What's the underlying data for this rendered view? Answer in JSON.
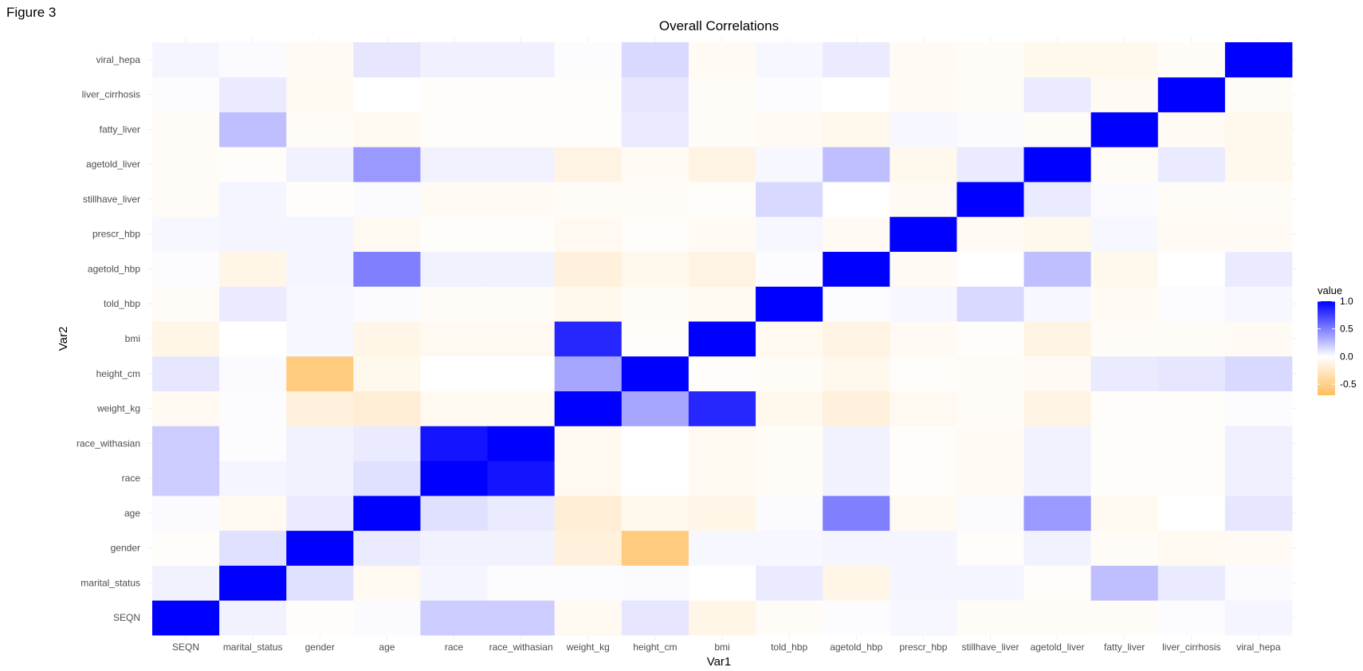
{
  "figure_label": "Figure 3",
  "colors": {
    "low": "#FFBE5C",
    "mid": "#FFFFFF",
    "high": "#0000FF"
  },
  "chart_data": {
    "type": "heatmap",
    "title": "Overall Correlations",
    "xlabel": "Var1",
    "ylabel": "Var2",
    "variables": [
      "SEQN",
      "marital_status",
      "gender",
      "age",
      "race",
      "race_withasian",
      "weight_kg",
      "height_cm",
      "bmi",
      "told_hbp",
      "agetold_hbp",
      "prescr_hbp",
      "stillhave_liver",
      "agetold_liver",
      "fatty_liver",
      "liver_cirrhosis",
      "viral_hepa"
    ],
    "legend": {
      "title": "value",
      "ticks": [
        1.0,
        0.5,
        0.0,
        -0.5
      ],
      "tick_labels": [
        "1.0",
        "0.5",
        "0.0",
        "-0.5"
      ],
      "range": [
        -0.7,
        1.0
      ]
    },
    "matrix": [
      [
        1.0,
        0.05,
        -0.02,
        0.02,
        0.2,
        0.2,
        -0.06,
        0.1,
        -0.1,
        -0.03,
        0.01,
        0.03,
        -0.04,
        -0.04,
        -0.03,
        0.01,
        0.04
      ],
      [
        0.05,
        1.0,
        0.12,
        -0.06,
        0.04,
        0.01,
        0.01,
        0.02,
        0.0,
        0.08,
        -0.1,
        0.04,
        0.04,
        -0.02,
        0.25,
        0.08,
        0.02
      ],
      [
        -0.02,
        0.12,
        1.0,
        0.08,
        0.05,
        0.05,
        -0.15,
        -0.55,
        0.03,
        0.03,
        0.04,
        0.04,
        -0.02,
        0.05,
        -0.04,
        -0.06,
        -0.05
      ],
      [
        0.02,
        -0.06,
        0.08,
        1.0,
        0.12,
        0.08,
        -0.18,
        -0.08,
        -0.1,
        0.02,
        0.5,
        -0.06,
        0.02,
        0.4,
        -0.07,
        0.0,
        0.1
      ],
      [
        0.2,
        0.04,
        0.05,
        0.12,
        1.0,
        0.92,
        -0.07,
        0.0,
        -0.06,
        -0.03,
        0.05,
        -0.02,
        -0.05,
        0.05,
        -0.02,
        -0.02,
        0.06
      ],
      [
        0.2,
        0.01,
        0.05,
        0.08,
        0.92,
        1.0,
        -0.07,
        0.0,
        -0.06,
        -0.03,
        0.05,
        -0.02,
        -0.05,
        0.05,
        -0.02,
        -0.02,
        0.06
      ],
      [
        -0.06,
        0.01,
        -0.15,
        -0.18,
        -0.07,
        -0.07,
        1.0,
        0.35,
        0.85,
        -0.08,
        -0.15,
        -0.06,
        -0.03,
        -0.12,
        -0.02,
        -0.02,
        0.01
      ],
      [
        0.1,
        0.02,
        -0.55,
        -0.08,
        0.0,
        0.0,
        0.35,
        1.0,
        -0.02,
        -0.04,
        -0.08,
        -0.02,
        -0.03,
        -0.05,
        0.08,
        0.1,
        0.15
      ],
      [
        -0.1,
        0.0,
        0.03,
        -0.1,
        -0.06,
        -0.06,
        0.85,
        -0.02,
        1.0,
        -0.07,
        -0.12,
        -0.05,
        -0.02,
        -0.12,
        -0.04,
        -0.04,
        -0.05
      ],
      [
        -0.03,
        0.08,
        0.03,
        0.02,
        -0.03,
        -0.03,
        -0.08,
        -0.04,
        -0.07,
        1.0,
        0.01,
        0.03,
        0.15,
        0.03,
        -0.05,
        0.01,
        0.03
      ],
      [
        0.01,
        -0.1,
        0.04,
        0.5,
        0.05,
        0.05,
        -0.15,
        -0.08,
        -0.12,
        0.01,
        1.0,
        -0.05,
        0.0,
        0.25,
        -0.08,
        0.0,
        0.08
      ],
      [
        0.03,
        0.04,
        0.04,
        -0.06,
        -0.02,
        -0.02,
        -0.06,
        -0.02,
        -0.05,
        0.03,
        -0.05,
        1.0,
        -0.05,
        -0.08,
        0.03,
        -0.05,
        -0.05
      ],
      [
        -0.04,
        0.04,
        -0.02,
        0.02,
        -0.05,
        -0.05,
        -0.03,
        -0.03,
        -0.02,
        0.15,
        0.0,
        -0.05,
        1.0,
        0.08,
        0.02,
        -0.04,
        -0.03
      ],
      [
        -0.04,
        -0.02,
        0.05,
        0.4,
        0.05,
        0.05,
        -0.12,
        -0.05,
        -0.12,
        0.03,
        0.25,
        -0.08,
        0.08,
        1.0,
        -0.03,
        0.08,
        -0.08
      ],
      [
        -0.03,
        0.25,
        -0.04,
        -0.07,
        -0.02,
        -0.02,
        -0.02,
        0.08,
        -0.04,
        -0.05,
        -0.08,
        0.03,
        0.02,
        -0.03,
        1.0,
        -0.05,
        -0.08
      ],
      [
        0.01,
        0.08,
        -0.06,
        0.0,
        -0.02,
        -0.02,
        -0.02,
        0.1,
        -0.04,
        0.01,
        0.0,
        -0.05,
        -0.04,
        0.08,
        -0.05,
        1.0,
        -0.03
      ],
      [
        0.04,
        0.02,
        -0.05,
        0.1,
        0.06,
        0.06,
        0.01,
        0.15,
        -0.05,
        0.03,
        0.08,
        -0.05,
        -0.03,
        -0.08,
        -0.08,
        -0.03,
        1.0
      ]
    ]
  }
}
